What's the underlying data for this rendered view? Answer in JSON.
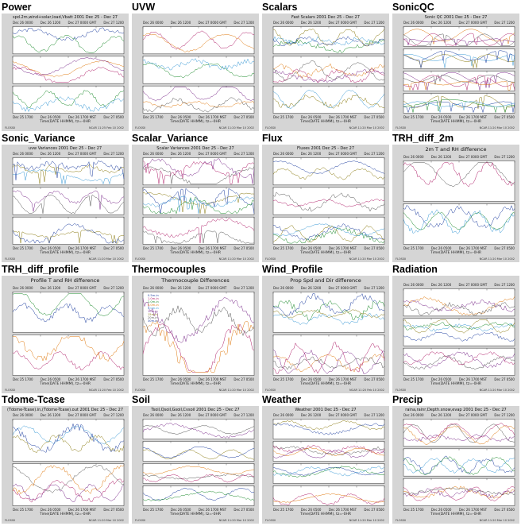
{
  "colors": {
    "panel_bg": "#d5d5d5",
    "plot_bg": "#ffffff",
    "series": [
      "#1f3fa0",
      "#b0206a",
      "#1a8a2a",
      "#e07a10",
      "#3b9ad6",
      "#7a2a8a",
      "#8a7a10",
      "#555555"
    ]
  },
  "icons": [
    "thumbnail-plot-icon"
  ],
  "thumbnails": [
    {
      "title": "Power",
      "caption": "spd.2m,wind+solar,load,Vbatt 2001 Dec 25 - Dec 27",
      "xlabel": "Time(DATE HHMM), tz=-0HR",
      "footer_left": "FLOSSII",
      "footer_right": "NCAR 11:25 Feb 10 2002",
      "top_dates": [
        "Dec 26 0000",
        "Dec 26 1200",
        "Dec 27 0000 GMT",
        "Dec 27 1200"
      ],
      "bottom_dates": [
        "Dec 25 1700",
        "Dec 26 0500",
        "Dec 26 1700 MST",
        "Dec 27 0500"
      ]
    },
    {
      "title": "UVW",
      "caption": "",
      "xlabel": "Time(DATE HHMM), tz=-0HR",
      "footer_left": "FLOSSII",
      "footer_right": "NCAR 11:20 Mar 10 2002",
      "top_dates": [
        "Dec 26 0000",
        "Dec 26 1200",
        "Dec 27 0000 GMT",
        "Dec 27 1200"
      ],
      "bottom_dates": [
        "Dec 25 1700",
        "Dec 26 0500",
        "Dec 26 1700 MST",
        "Dec 27 0500"
      ]
    },
    {
      "title": "Scalars",
      "caption": "Fast Scalars 2001 Dec 25 - Dec 27",
      "xlabel": "Time(DATE HHMM), tz=-0HR",
      "footer_left": "FLOSSII",
      "footer_right": "NCAR 11:20 Mar 10 2002",
      "top_dates": [
        "Dec 26 0000",
        "Dec 26 1200",
        "Dec 27 0000 GMT",
        "Dec 27 1200"
      ],
      "bottom_dates": [
        "Dec 25 1700",
        "Dec 26 0500",
        "Dec 26 1700 MST",
        "Dec 27 0500"
      ]
    },
    {
      "title": "SonicQC",
      "caption": "Sonic QC 2001 Dec 25 - Dec 27",
      "xlabel": "Time(DATE HHMM), tz=-0HR",
      "footer_left": "FLOSSII",
      "footer_right": "NCAR 11:20 Mar 10 2002",
      "top_dates": [
        "Dec 26 0000",
        "Dec 26 1200",
        "Dec 27 0000 GMT",
        "Dec 27 1200"
      ],
      "bottom_dates": [
        "Dec 25 1700",
        "Dec 26 0500",
        "Dec 26 1700 MST",
        "Dec 27 0500"
      ]
    },
    {
      "title": "Sonic_Variance",
      "caption": "uvw Variances 2001 Dec 25 - Dec 27",
      "xlabel": "Time(DATE HHMM), tz=-0HR",
      "footer_left": "FLOSSII",
      "footer_right": "NCAR 11:20 Mar 10 2002",
      "top_dates": [
        "Dec 26 0000",
        "Dec 26 1200",
        "Dec 27 0000 GMT",
        "Dec 27 1200"
      ],
      "bottom_dates": [
        "Dec 25 1700",
        "Dec 26 0500",
        "Dec 26 1700 MST",
        "Dec 27 0500"
      ]
    },
    {
      "title": "Scalar_Variance",
      "caption": "Scalar Variances 2001 Dec 25 - Dec 27",
      "xlabel": "Time(DATE HHMM), tz=-0HR",
      "footer_left": "FLOSSII",
      "footer_right": "NCAR 11:20 Mar 10 2002",
      "top_dates": [
        "Dec 26 0000",
        "Dec 26 1200",
        "Dec 27 0000 GMT",
        "Dec 27 1200"
      ],
      "bottom_dates": [
        "Dec 25 1700",
        "Dec 26 0500",
        "Dec 26 1700 MST",
        "Dec 27 0500"
      ]
    },
    {
      "title": "Flux",
      "caption": "Fluxes 2001 Dec 25 - Dec 27",
      "xlabel": "Time(DATE HHMM), tz=-0HR",
      "footer_left": "FLOSSII",
      "footer_right": "NCAR 11:20 Mar 10 2002",
      "top_dates": [
        "Dec 26 0000",
        "Dec 26 1200",
        "Dec 27 0000 GMT",
        "Dec 27 1200"
      ],
      "bottom_dates": [
        "Dec 25 1700",
        "Dec 26 0500",
        "Dec 26 1700 MST",
        "Dec 27 0500"
      ]
    },
    {
      "title": "TRH_diff_2m",
      "caption": "2m T and RH difference",
      "xlabel": "Time(DATE HHMM), tz=-0HR",
      "footer_left": "FLOSSII",
      "footer_right": "NCAR 11:20 Mar 10 2002",
      "top_dates": [
        "Dec 26 0000",
        "Dec 26 1200",
        "Dec 27 0000 GMT",
        "Dec 27 1200"
      ],
      "bottom_dates": [
        "Dec 25 1700",
        "Dec 26 0500",
        "Dec 26 1700 MST",
        "Dec 27 0500"
      ]
    },
    {
      "title": "TRH_diff_profile",
      "caption": "Profile T and RH difference",
      "xlabel": "Time(DATE HHMM), tz=-0HR",
      "footer_left": "FLOSSII",
      "footer_right": "NCAR 11:20 Feb 10 2002",
      "top_dates": [
        "Dec 26 0000",
        "Dec 26 1200",
        "Dec 27 0000 GMT",
        "Dec 27 1200"
      ],
      "bottom_dates": [
        "Dec 25 1700",
        "Dec 26 0500",
        "Dec 26 1700 MST",
        "Dec 27 0500"
      ]
    },
    {
      "title": "Thermocouples",
      "caption": "Thermocouple Differences",
      "xlabel": "Time(DATE HHMM), tz=-0HR",
      "footer_left": "FLOSSII",
      "footer_right": "NCAR 11:20 Mar 10 2002",
      "top_dates": [
        "Dec 26 0000",
        "Dec 26 1200",
        "Dec 27 0000 GMT",
        "Dec 27 1200"
      ],
      "bottom_dates": [
        "Dec 25 1700",
        "Dec 26 0500",
        "Dec 26 1700 MST",
        "Dec 27 0500"
      ]
    },
    {
      "title": "Wind_Profile",
      "caption": "Prop Spd and Dir difference",
      "xlabel": "Time(DATE HHMM), tz=-0HR",
      "footer_left": "FLOSSII",
      "footer_right": "NCAR 11:20 Feb 10 2002",
      "top_dates": [
        "Dec 26 0000",
        "Dec 26 1200",
        "Dec 27 0000 GMT",
        "Dec 27 1200"
      ],
      "bottom_dates": [
        "Dec 25 1700",
        "Dec 26 0500",
        "Dec 26 1700 MST",
        "Dec 27 0500"
      ]
    },
    {
      "title": "Radiation",
      "caption": "",
      "xlabel": "Time(DATE HHMM), tz=-0HR",
      "footer_left": "FLOSSII",
      "footer_right": "NCAR 11:20 Mar 10 2002",
      "top_dates": [
        "Dec 26 0000",
        "Dec 26 1200",
        "Dec 27 0000 GMT",
        "Dec 27 1200"
      ],
      "bottom_dates": [
        "Dec 25 1700",
        "Dec 26 0500",
        "Dec 26 1700 MST",
        "Dec 27 0500"
      ]
    },
    {
      "title": "Tdome-Tcase",
      "caption": "(Tdome-Tcase).in,(Tdome-Tcase).out 2001 Dec 25 - Dec 27",
      "xlabel": "Time(DATE HHMM), tz=-0HR",
      "footer_left": "FLOSSII",
      "footer_right": "NCAR 11:20 Mar 10 2002",
      "top_dates": [
        "Dec 26 0000",
        "Dec 26 1200",
        "Dec 27 0000 GMT",
        "Dec 27 1200"
      ],
      "bottom_dates": [
        "Dec 25 1700",
        "Dec 26 0500",
        "Dec 26 1700 MST",
        "Dec 27 0500"
      ]
    },
    {
      "title": "Soil",
      "caption": "Tsoil,Qsoil,Gsoil,Cvsoil 2001 Dec 25 - Dec 27",
      "xlabel": "Time(DATE HHMM), tz=-0HR",
      "footer_left": "FLOSSII",
      "footer_right": "NCAR 11:20 Mar 10 2002",
      "top_dates": [
        "Dec 26 0000",
        "Dec 26 1200",
        "Dec 27 0000 GMT",
        "Dec 27 1200"
      ],
      "bottom_dates": [
        "Dec 25 1700",
        "Dec 26 0500",
        "Dec 26 1700 MST",
        "Dec 27 0500"
      ]
    },
    {
      "title": "Weather",
      "caption": "Weather 2001 Dec 25 - Dec 27",
      "xlabel": "Time(DATE HHMM), tz=-0HR",
      "footer_left": "FLOSSII",
      "footer_right": "NCAR 11:20 Mar 10 2002",
      "top_dates": [
        "Dec 26 0000",
        "Dec 26 1200",
        "Dec 27 0000 GMT",
        "Dec 27 1200"
      ],
      "bottom_dates": [
        "Dec 25 1700",
        "Dec 26 0500",
        "Dec 26 1700 MST",
        "Dec 27 0500"
      ]
    },
    {
      "title": "Precip",
      "caption": "raina,rainr,Depth.snow,evap 2001 Dec 25 - Dec 27",
      "xlabel": "Time(DATE HHMM), tz=-0HR",
      "footer_left": "FLOSSII",
      "footer_right": "NCAR 11:20 Mar 10 2002",
      "top_dates": [
        "Dec 26 0000",
        "Dec 26 1200",
        "Dec 27 0000 GMT",
        "Dec 27 1200"
      ],
      "bottom_dates": [
        "Dec 25 1700",
        "Dec 26 0500",
        "Dec 26 1700 MST",
        "Dec 27 0500"
      ]
    }
  ],
  "thermocouple_legend": [
    "0.5m-in",
    "1.0m-in",
    "2.0m-in",
    "3.0m-in",
    "5.0m-in",
    "10m-in",
    "15m-in",
    "20m-in",
    "30m-in"
  ]
}
